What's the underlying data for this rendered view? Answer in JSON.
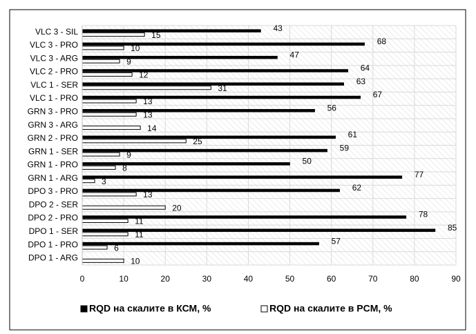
{
  "chart_data": {
    "type": "hbar",
    "categories": [
      "VLC 3 - SIL",
      "VLC 3 - PRO",
      "VLC 3 - ARG",
      "VLC 2 - PRO",
      "VLC 1 - SER",
      "VLC 1 - PRO",
      "GRN 3 - PRO",
      "GRN 3 - ARG",
      "GRN 2 - PRO",
      "GRN 1 - SER",
      "GRN 1 - PRO",
      "GRN 1 - ARG",
      "DPO 3 - PRO",
      "DPO 2 - SER",
      "DPO 2 - PRO",
      "DPO 1 - SER",
      "DPO 1 - PRO",
      "DPO 1 - ARG"
    ],
    "series": [
      {
        "name": "RQD на скалите в КСМ, %",
        "color": "#000000",
        "values": [
          43,
          68,
          47,
          64,
          63,
          67,
          56,
          null,
          61,
          59,
          50,
          77,
          62,
          null,
          78,
          85,
          57,
          null
        ]
      },
      {
        "name": "RQD на скалите в PCM, %",
        "color": "#ffffff",
        "values": [
          15,
          10,
          9,
          12,
          31,
          13,
          13,
          14,
          25,
          9,
          8,
          3,
          13,
          20,
          11,
          11,
          6,
          10
        ]
      }
    ],
    "xlim": [
      0,
      90
    ],
    "xticks": [
      0,
      10,
      20,
      30,
      40,
      50,
      60,
      70,
      80,
      90
    ],
    "grid": true,
    "legend": "bottom"
  }
}
